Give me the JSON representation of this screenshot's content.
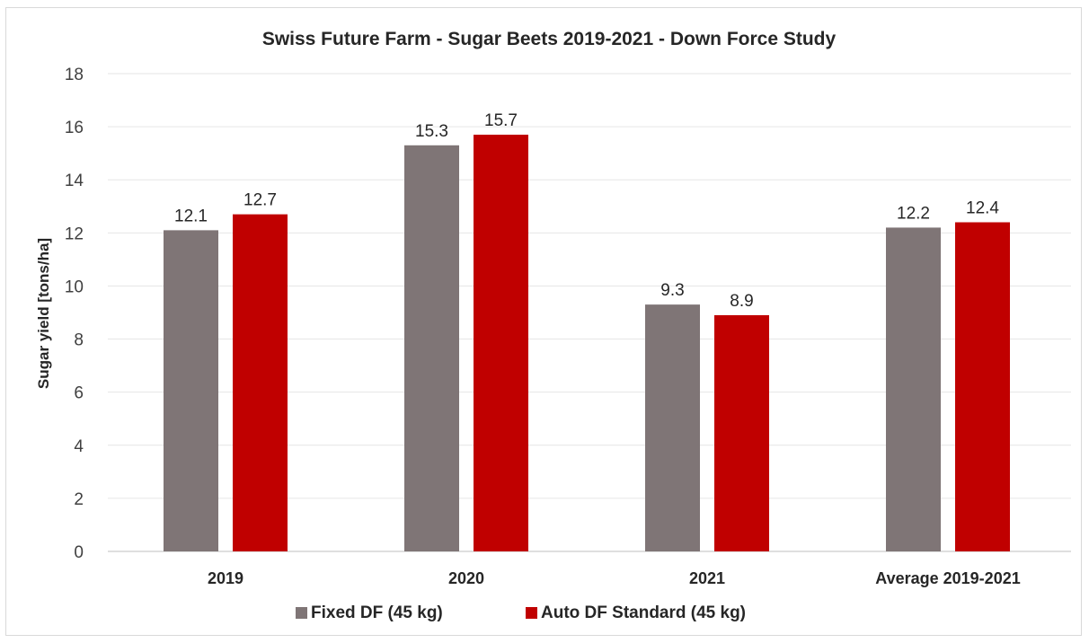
{
  "chart_data": {
    "type": "bar",
    "title": "Swiss Future Farm - Sugar Beets 2019-2021 - Down Force Study",
    "xlabel": "",
    "ylabel": "Sugar yield [tons/ha]",
    "ylim": [
      0,
      18
    ],
    "yticks": [
      "0",
      "2",
      "4",
      "6",
      "8",
      "10",
      "12",
      "14",
      "16",
      "18"
    ],
    "categories": [
      "2019",
      "2020",
      "2021",
      "Average 2019-2021"
    ],
    "series": [
      {
        "name": "Fixed DF (45 kg)",
        "color": "#7f7576",
        "values": [
          12.1,
          15.3,
          9.3,
          12.2
        ],
        "labels": [
          "12.1",
          "15.3",
          "9.3",
          "12.2"
        ]
      },
      {
        "name": "Auto DF Standard (45 kg)",
        "color": "#c00000",
        "values": [
          12.7,
          15.7,
          8.9,
          12.4
        ],
        "labels": [
          "12.7",
          "15.7",
          "8.9",
          "12.4"
        ]
      }
    ],
    "grid": true,
    "legend_position": "bottom"
  }
}
